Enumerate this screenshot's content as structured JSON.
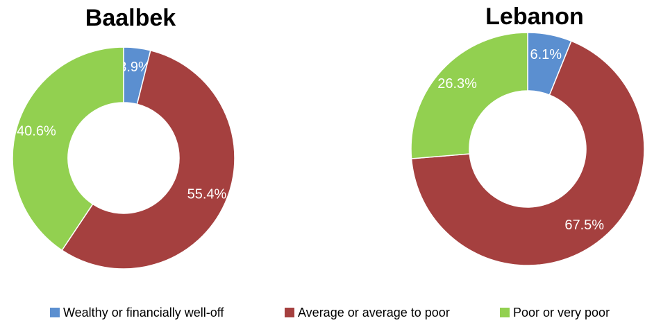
{
  "chart_data": [
    {
      "type": "donut",
      "title": "Baalbek",
      "categories": [
        "Wealthy or financially well-off",
        "Average or average to poor",
        "Poor or very poor"
      ],
      "values": [
        3.9,
        55.4,
        40.6
      ],
      "value_labels": [
        "3.9%",
        "55.4%",
        "40.6%"
      ],
      "colors": [
        "#5b8fd0",
        "#a5403f",
        "#92d050"
      ]
    },
    {
      "type": "donut",
      "title": "Lebanon",
      "categories": [
        "Wealthy or financially well-off",
        "Average or average to poor",
        "Poor or very poor"
      ],
      "values": [
        6.1,
        67.5,
        26.3
      ],
      "value_labels": [
        "6.1%",
        "67.5%",
        "26.3%"
      ],
      "colors": [
        "#5b8fd0",
        "#a5403f",
        "#92d050"
      ]
    }
  ]
}
